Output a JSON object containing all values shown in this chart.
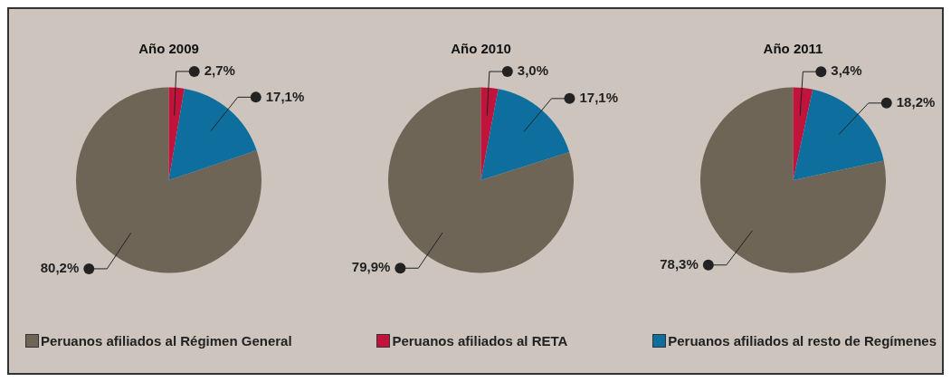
{
  "chart_data": [
    {
      "type": "pie",
      "title": "Año 2009",
      "categories": [
        "Peruanos afiliados al Régimen General",
        "Peruanos afiliados al RETA",
        "Peruanos afiliados al resto de Regímenes"
      ],
      "values": [
        80.2,
        2.7,
        17.1
      ],
      "colors": [
        "#6f6556",
        "#c0143c",
        "#0e6e9e"
      ],
      "value_labels": [
        "80,2%",
        "2,7%",
        "17,1%"
      ],
      "legend": "bottom"
    },
    {
      "type": "pie",
      "title": "Año 2010",
      "categories": [
        null,
        null,
        null
      ],
      "values": [
        79.9,
        3.0,
        17.1
      ],
      "colors": [
        "#6f6556",
        "#c0143c",
        "#0e6e9e"
      ],
      "value_labels": [
        "79,9%",
        "3,0%",
        "17,1%"
      ]
    },
    {
      "type": "pie",
      "title": "Año 2011",
      "categories": [
        null,
        null,
        null
      ],
      "values": [
        78.3,
        3.4,
        18.2
      ],
      "colors": [
        "#6f6556",
        "#c0143c",
        "#0e6e9e"
      ],
      "value_labels": [
        "78,3%",
        "3,4%",
        "18,2%"
      ]
    }
  ]
}
